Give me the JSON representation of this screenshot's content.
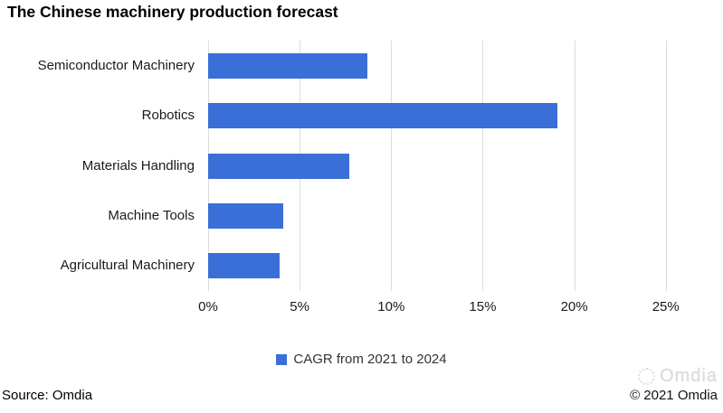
{
  "title": "The Chinese machinery production forecast",
  "legend": {
    "label": "CAGR from 2021 to 2024"
  },
  "footer": {
    "source": "Source: Omdia",
    "watermark": "Omdia",
    "copyright": "© 2021 Omdia"
  },
  "colors": {
    "bar": "#3A6FD8",
    "gridline": "#DCDCDC",
    "text": "#1a1a1a"
  },
  "chart_data": {
    "type": "bar",
    "orientation": "horizontal",
    "title": "The Chinese machinery production forecast",
    "categories": [
      "Semiconductor Machinery",
      "Robotics",
      "Materials Handling",
      "Machine Tools",
      "Agricultural Machinery"
    ],
    "series": [
      {
        "name": "CAGR from 2021 to 2024",
        "values": [
          8.7,
          19.1,
          7.7,
          4.1,
          3.9
        ]
      }
    ],
    "unit": "%",
    "xlabel": "",
    "ylabel": "",
    "x_ticks": [
      "0%",
      "5%",
      "10%",
      "15%",
      "20%",
      "25%"
    ],
    "x_tick_values": [
      0,
      5,
      10,
      15,
      20,
      25
    ],
    "xlim": [
      0,
      26.2
    ],
    "grid": true,
    "legend_position": "bottom-center"
  }
}
